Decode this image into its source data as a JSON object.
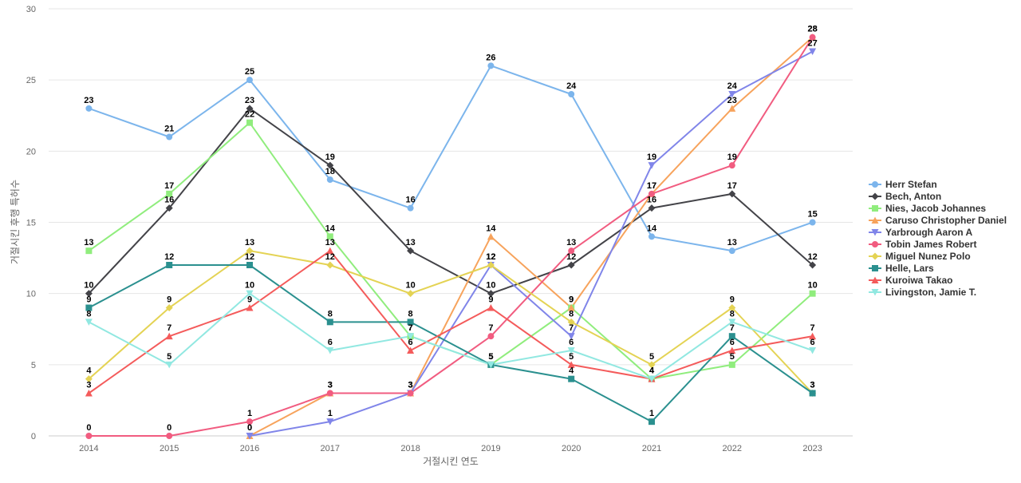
{
  "chart_data": {
    "type": "line",
    "xlabel": "거절시킨 연도",
    "ylabel": "거절시킨 후행 특허수",
    "ylim": [
      0,
      30
    ],
    "yticks": [
      0,
      5,
      10,
      15,
      20,
      25,
      30
    ],
    "categories": [
      "2014",
      "2015",
      "2016",
      "2017",
      "2018",
      "2019",
      "2020",
      "2021",
      "2022",
      "2023"
    ],
    "grid": "horizontal",
    "legend_position": "right",
    "data_labels": true,
    "series": [
      {
        "name": "Herr Stefan",
        "color": "#7cb5ec",
        "marker": "circle",
        "values": [
          23,
          21,
          25,
          18,
          16,
          26,
          24,
          14,
          13,
          15
        ]
      },
      {
        "name": "Bech, Anton",
        "color": "#434348",
        "marker": "diamond",
        "values": [
          10,
          16,
          23,
          19,
          13,
          10,
          12,
          16,
          17,
          12
        ]
      },
      {
        "name": "Nies, Jacob Johannes",
        "color": "#90ed7d",
        "marker": "square",
        "values": [
          13,
          17,
          22,
          14,
          7,
          5,
          9,
          4,
          5,
          10
        ]
      },
      {
        "name": "Caruso Christopher Daniel",
        "color": "#f7a35c",
        "marker": "triangle",
        "values": [
          null,
          null,
          0,
          3,
          3,
          14,
          9,
          17,
          23,
          28
        ]
      },
      {
        "name": "Yarbrough Aaron A",
        "color": "#8085e9",
        "marker": "triangle-down",
        "values": [
          null,
          null,
          0,
          1,
          3,
          12,
          7,
          19,
          24,
          27
        ]
      },
      {
        "name": "Tobin James Robert",
        "color": "#f15c80",
        "marker": "circle",
        "values": [
          0,
          0,
          1,
          3,
          3,
          7,
          13,
          17,
          19,
          28
        ]
      },
      {
        "name": "Miguel Nunez Polo",
        "color": "#e4d354",
        "marker": "diamond",
        "values": [
          4,
          9,
          13,
          12,
          10,
          12,
          8,
          5,
          9,
          3
        ]
      },
      {
        "name": "Helle, Lars",
        "color": "#2b908f",
        "marker": "square",
        "values": [
          9,
          12,
          12,
          8,
          8,
          5,
          4,
          1,
          7,
          3
        ]
      },
      {
        "name": "Kuroiwa Takao",
        "color": "#f45b5b",
        "marker": "triangle",
        "values": [
          3,
          7,
          9,
          13,
          6,
          9,
          5,
          4,
          6,
          7
        ]
      },
      {
        "name": "Livingston, Jamie T.",
        "color": "#91e8e1",
        "marker": "triangle-down",
        "values": [
          8,
          5,
          10,
          6,
          7,
          5,
          6,
          4,
          8,
          6
        ]
      }
    ]
  }
}
